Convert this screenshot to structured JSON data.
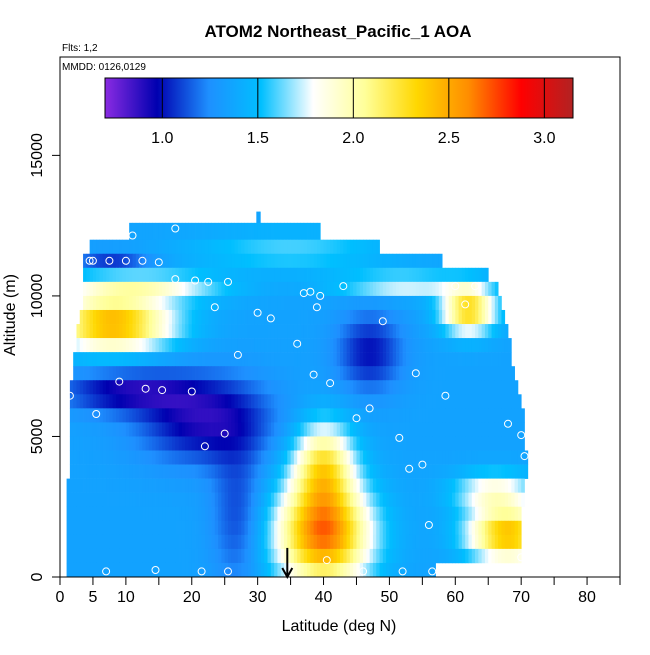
{
  "chart_data": {
    "type": "heatmap",
    "title": "ATOM2 Northeast_Pacific_1 AOA",
    "notes": {
      "flights": "Flts: 1,2",
      "dates": "MMDD: 0126,0129"
    },
    "xlabel": "Latitude (deg N)",
    "ylabel": "Altitude (m)",
    "xlim": [
      0,
      85
    ],
    "ylim": [
      0,
      18500
    ],
    "x_ticks": [
      {
        "value": 0,
        "label": "0"
      },
      {
        "value": 5,
        "label": "5"
      },
      {
        "value": 10,
        "label": "10"
      },
      {
        "value": 20,
        "label": "20"
      },
      {
        "value": 30,
        "label": "30"
      },
      {
        "value": 40,
        "label": "40"
      },
      {
        "value": 50,
        "label": "50"
      },
      {
        "value": 60,
        "label": "60"
      },
      {
        "value": 70,
        "label": "70"
      },
      {
        "value": 80,
        "label": "80"
      }
    ],
    "x_minor_ticks": [
      15,
      25,
      35,
      45,
      55,
      65,
      75,
      85
    ],
    "y_ticks": [
      {
        "value": 0,
        "label": "0"
      },
      {
        "value": 5000,
        "label": "5000"
      },
      {
        "value": 10000,
        "label": "10000"
      },
      {
        "value": 15000,
        "label": "15000"
      }
    ],
    "colorbar": {
      "range": [
        0.7,
        3.15
      ],
      "tick_values": [
        1.0,
        1.5,
        2.0,
        2.5,
        3.0
      ],
      "tick_labels": [
        "1.0",
        "1.5",
        "2.0",
        "2.5",
        "3.0"
      ],
      "colors": [
        "#8a2be2",
        "#0000b0",
        "#1e90ff",
        "#00bfff",
        "#ffffff",
        "#ffff99",
        "#ffd700",
        "#ff8c00",
        "#ff0000",
        "#b22222"
      ]
    },
    "profile_rows": [
      {
        "y0": 12600,
        "y1": 13000,
        "x0": 29.8,
        "x1": 30.4
      },
      {
        "y0": 12000,
        "y1": 12600,
        "x0": 10.5,
        "x1": 39.5
      },
      {
        "y0": 11500,
        "y1": 12000,
        "x0": 4.5,
        "x1": 48.5
      },
      {
        "y0": 11000,
        "y1": 11500,
        "x0": 3.5,
        "x1": 58
      },
      {
        "y0": 10500,
        "y1": 11000,
        "x0": 3.5,
        "x1": 65
      },
      {
        "y0": 10000,
        "y1": 10500,
        "x0": 3.5,
        "x1": 66.5
      },
      {
        "y0": 9500,
        "y1": 10000,
        "x0": 3.5,
        "x1": 67
      },
      {
        "y0": 9000,
        "y1": 9500,
        "x0": 3.0,
        "x1": 67.5
      },
      {
        "y0": 8500,
        "y1": 9000,
        "x0": 2.5,
        "x1": 68
      },
      {
        "y0": 8000,
        "y1": 8500,
        "x0": 2.5,
        "x1": 68.5
      },
      {
        "y0": 7500,
        "y1": 8000,
        "x0": 2.0,
        "x1": 68.5
      },
      {
        "y0": 7000,
        "y1": 7500,
        "x0": 2.0,
        "x1": 69
      },
      {
        "y0": 6500,
        "y1": 7000,
        "x0": 1.5,
        "x1": 69.5
      },
      {
        "y0": 6000,
        "y1": 6500,
        "x0": 1.5,
        "x1": 70
      },
      {
        "y0": 5500,
        "y1": 6000,
        "x0": 1.5,
        "x1": 70.5
      },
      {
        "y0": 5000,
        "y1": 5500,
        "x0": 1.5,
        "x1": 70.5
      },
      {
        "y0": 4500,
        "y1": 5000,
        "x0": 1.5,
        "x1": 70.5
      },
      {
        "y0": 4000,
        "y1": 4500,
        "x0": 1.5,
        "x1": 71
      },
      {
        "y0": 3500,
        "y1": 4000,
        "x0": 1.5,
        "x1": 71
      },
      {
        "y0": 3000,
        "y1": 3500,
        "x0": 1.0,
        "x1": 70.5
      },
      {
        "y0": 2500,
        "y1": 3000,
        "x0": 1.0,
        "x1": 70.5
      },
      {
        "y0": 2000,
        "y1": 2500,
        "x0": 1.0,
        "x1": 70
      },
      {
        "y0": 1500,
        "y1": 2000,
        "x0": 1.0,
        "x1": 70
      },
      {
        "y0": 1000,
        "y1": 1500,
        "x0": 1.0,
        "x1": 70
      },
      {
        "y0": 500,
        "y1": 1000,
        "x0": 1.0,
        "x1": 70
      },
      {
        "y0": 0,
        "y1": 500,
        "x0": 1.0,
        "x1": 57
      }
    ],
    "sample_points": [
      {
        "x": 11.0,
        "y": 12150
      },
      {
        "x": 17.5,
        "y": 12400
      },
      {
        "x": 4.5,
        "y": 11250
      },
      {
        "x": 5.0,
        "y": 11250
      },
      {
        "x": 7.5,
        "y": 11250
      },
      {
        "x": 10.0,
        "y": 11250
      },
      {
        "x": 12.5,
        "y": 11250
      },
      {
        "x": 15.0,
        "y": 11200
      },
      {
        "x": 17.5,
        "y": 10600
      },
      {
        "x": 20.5,
        "y": 10550
      },
      {
        "x": 22.5,
        "y": 10500
      },
      {
        "x": 25.5,
        "y": 10500
      },
      {
        "x": 37.0,
        "y": 10100
      },
      {
        "x": 38.0,
        "y": 10150
      },
      {
        "x": 39.5,
        "y": 10000
      },
      {
        "x": 43.0,
        "y": 10350
      },
      {
        "x": 60.0,
        "y": 10350
      },
      {
        "x": 63.0,
        "y": 10350
      },
      {
        "x": 23.5,
        "y": 9600
      },
      {
        "x": 39.0,
        "y": 9600
      },
      {
        "x": 61.5,
        "y": 9700
      },
      {
        "x": 30.0,
        "y": 9400
      },
      {
        "x": 32.0,
        "y": 9200
      },
      {
        "x": 49.0,
        "y": 9100
      },
      {
        "x": 36.0,
        "y": 8300
      },
      {
        "x": 27.0,
        "y": 7900
      },
      {
        "x": 38.5,
        "y": 7200
      },
      {
        "x": 54.0,
        "y": 7250
      },
      {
        "x": 9.0,
        "y": 6950
      },
      {
        "x": 13.0,
        "y": 6700
      },
      {
        "x": 15.5,
        "y": 6650
      },
      {
        "x": 20.0,
        "y": 6600
      },
      {
        "x": 41.0,
        "y": 6900
      },
      {
        "x": 1.5,
        "y": 6450
      },
      {
        "x": 58.5,
        "y": 6450
      },
      {
        "x": 5.5,
        "y": 5800
      },
      {
        "x": 47.0,
        "y": 6000
      },
      {
        "x": 45.0,
        "y": 5650
      },
      {
        "x": 68.0,
        "y": 5450
      },
      {
        "x": 25.0,
        "y": 5100
      },
      {
        "x": 22.0,
        "y": 4650
      },
      {
        "x": 51.5,
        "y": 4950
      },
      {
        "x": 70.0,
        "y": 5050
      },
      {
        "x": 70.5,
        "y": 4300
      },
      {
        "x": 55.0,
        "y": 4000
      },
      {
        "x": 53.0,
        "y": 3850
      },
      {
        "x": 56.0,
        "y": 1850
      },
      {
        "x": 40.5,
        "y": 600
      },
      {
        "x": 70.0,
        "y": 700
      },
      {
        "x": 7.0,
        "y": 200
      },
      {
        "x": 14.5,
        "y": 250
      },
      {
        "x": 21.5,
        "y": 200
      },
      {
        "x": 25.5,
        "y": 200
      },
      {
        "x": 46.0,
        "y": 200
      },
      {
        "x": 52.0,
        "y": 200
      },
      {
        "x": 56.5,
        "y": 200
      }
    ],
    "arrow_marker": {
      "x": 34.5,
      "y_top": 750,
      "y_bottom": 0
    }
  }
}
